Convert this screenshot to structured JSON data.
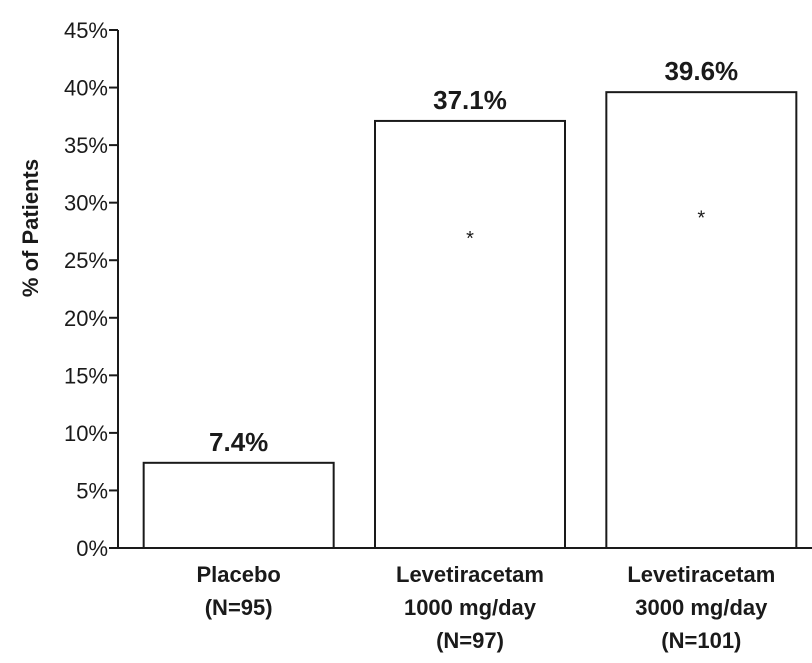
{
  "chart_data": {
    "type": "bar",
    "categories": [
      [
        "Placebo",
        "(N=95)"
      ],
      [
        "Levetiracetam",
        "1000 mg/day",
        "(N=97)"
      ],
      [
        "Levetiracetam",
        "3000 mg/day",
        "(N=101)"
      ]
    ],
    "values": [
      7.4,
      37.1,
      39.6
    ],
    "data_labels": [
      "7.4%",
      "37.1%",
      "39.6%"
    ],
    "significance_markers": [
      "",
      "*",
      "*"
    ],
    "ylabel": "% of Patients",
    "ylim": [
      0,
      45
    ],
    "yticks": [
      0,
      5,
      10,
      15,
      20,
      25,
      30,
      35,
      40,
      45
    ],
    "ytick_labels": [
      "0%",
      "5%",
      "10%",
      "15%",
      "20%",
      "25%",
      "30%",
      "35%",
      "40%",
      "45%"
    ],
    "grid": false,
    "bar_fill": "#ffffff",
    "bar_stroke": "#1a1a1a"
  }
}
